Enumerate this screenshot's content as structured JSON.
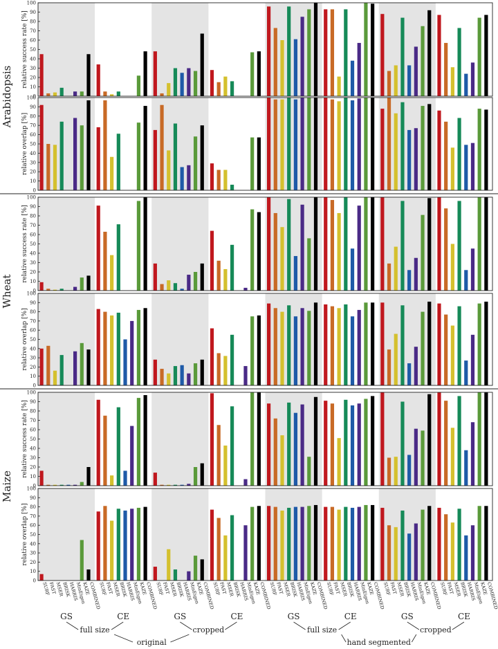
{
  "chart_data": {
    "type": "bar",
    "categories": [
      "SURF",
      "FAST",
      "MSER",
      "BRISK",
      "HARRIS",
      "MinEigen",
      "KAZE",
      "COMBINED"
    ],
    "group_labels": {
      "row1": [
        "GS",
        "CE",
        "GS",
        "CE",
        "GS",
        "CE",
        "GS",
        "CE"
      ],
      "row2": [
        "full size",
        "cropped",
        "full size",
        "cropped"
      ],
      "row3": [
        "original",
        "hand segmented"
      ]
    },
    "shaded_groups": [
      0,
      2,
      4,
      6
    ],
    "species": [
      "Arabidopsis",
      "Wheat",
      "Maize"
    ],
    "ylim": [
      0,
      100
    ],
    "yticks": [
      0,
      10,
      20,
      30,
      40,
      50,
      60,
      70,
      80,
      90,
      100
    ],
    "colors": [
      "#c0181e",
      "#c86a26",
      "#d4c02e",
      "#168a58",
      "#1e5aa8",
      "#4a2a86",
      "#5a9a3a",
      "#000000"
    ],
    "shade_color": "#e4e4e4",
    "panels": [
      {
        "species": "Arabidopsis",
        "ylabel": "relative success rate [%]",
        "groups": [
          [
            45,
            3,
            4,
            9,
            0,
            5,
            5,
            45
          ],
          [
            34,
            5,
            2,
            5,
            0,
            0,
            22,
            48
          ],
          [
            48,
            3,
            14,
            30,
            25,
            30,
            27,
            67
          ],
          [
            28,
            15,
            21,
            16,
            0,
            0,
            47,
            48
          ],
          [
            96,
            73,
            60,
            96,
            61,
            85,
            93,
            100
          ],
          [
            93,
            93,
            21,
            93,
            38,
            57,
            100,
            99
          ],
          [
            88,
            27,
            33,
            84,
            33,
            53,
            75,
            92
          ],
          [
            87,
            57,
            31,
            73,
            24,
            36,
            84,
            87
          ]
        ]
      },
      {
        "species": "Arabidopsis",
        "ylabel": "relative overlap [%]",
        "groups": [
          [
            92,
            50,
            49,
            74,
            0,
            78,
            70,
            97
          ],
          [
            68,
            97,
            36,
            61,
            0,
            0,
            73,
            91
          ],
          [
            65,
            92,
            43,
            72,
            25,
            27,
            58,
            70
          ],
          [
            29,
            22,
            22,
            6,
            0,
            0,
            57,
            57
          ],
          [
            100,
            98,
            98,
            100,
            98,
            100,
            100,
            100
          ],
          [
            100,
            98,
            96,
            100,
            97,
            99,
            100,
            100
          ],
          [
            88,
            100,
            83,
            95,
            65,
            67,
            91,
            93
          ],
          [
            86,
            74,
            46,
            78,
            49,
            51,
            88,
            87
          ]
        ]
      },
      {
        "species": "Wheat",
        "ylabel": "relative success rate [%]",
        "groups": [
          [
            9,
            2,
            1,
            2,
            0,
            4,
            14,
            16
          ],
          [
            91,
            63,
            38,
            71,
            0,
            0,
            96,
            100
          ],
          [
            29,
            7,
            11,
            8,
            2,
            17,
            20,
            29
          ],
          [
            64,
            32,
            23,
            49,
            0,
            3,
            87,
            84
          ],
          [
            100,
            83,
            68,
            98,
            37,
            92,
            56,
            100
          ],
          [
            100,
            97,
            83,
            100,
            45,
            91,
            100,
            100
          ],
          [
            100,
            29,
            47,
            96,
            22,
            35,
            81,
            99
          ],
          [
            100,
            88,
            50,
            96,
            22,
            45,
            100,
            100
          ]
        ]
      },
      {
        "species": "Wheat",
        "ylabel": "relative overlap [%]",
        "groups": [
          [
            40,
            43,
            16,
            33,
            0,
            37,
            46,
            39
          ],
          [
            83,
            80,
            76,
            79,
            50,
            70,
            82,
            84
          ],
          [
            28,
            18,
            13,
            21,
            22,
            13,
            24,
            28
          ],
          [
            62,
            35,
            32,
            55,
            0,
            21,
            75,
            76
          ],
          [
            89,
            84,
            80,
            87,
            75,
            84,
            81,
            90
          ],
          [
            88,
            86,
            84,
            88,
            75,
            82,
            90,
            90
          ],
          [
            90,
            39,
            56,
            87,
            24,
            42,
            80,
            91
          ],
          [
            89,
            77,
            65,
            86,
            27,
            55,
            89,
            91
          ]
        ]
      },
      {
        "species": "Maize",
        "ylabel": "relative success rate [%]",
        "groups": [
          [
            16,
            1,
            1,
            1,
            1,
            1,
            4,
            20
          ],
          [
            92,
            75,
            11,
            84,
            16,
            64,
            94,
            97
          ],
          [
            14,
            1,
            1,
            1,
            1,
            2,
            20,
            24
          ],
          [
            99,
            65,
            43,
            85,
            0,
            7,
            100,
            100
          ],
          [
            88,
            72,
            54,
            89,
            78,
            87,
            31,
            95
          ],
          [
            91,
            88,
            51,
            92,
            86,
            88,
            93,
            96
          ],
          [
            100,
            30,
            31,
            90,
            33,
            61,
            59,
            98
          ],
          [
            100,
            91,
            62,
            96,
            38,
            68,
            100,
            100
          ]
        ]
      },
      {
        "species": "Maize",
        "ylabel": "relative overlap [%]",
        "groups": [
          [
            7,
            0,
            0,
            0,
            0,
            0,
            44,
            12
          ],
          [
            75,
            81,
            65,
            78,
            76,
            78,
            79,
            80
          ],
          [
            15,
            0,
            34,
            12,
            0,
            10,
            27,
            23
          ],
          [
            77,
            68,
            49,
            71,
            0,
            60,
            80,
            81
          ],
          [
            81,
            80,
            76,
            79,
            80,
            80,
            81,
            82
          ],
          [
            80,
            80,
            77,
            80,
            79,
            80,
            82,
            82
          ],
          [
            79,
            60,
            58,
            76,
            51,
            62,
            77,
            81
          ],
          [
            79,
            72,
            63,
            78,
            49,
            60,
            81,
            81
          ]
        ]
      }
    ]
  }
}
